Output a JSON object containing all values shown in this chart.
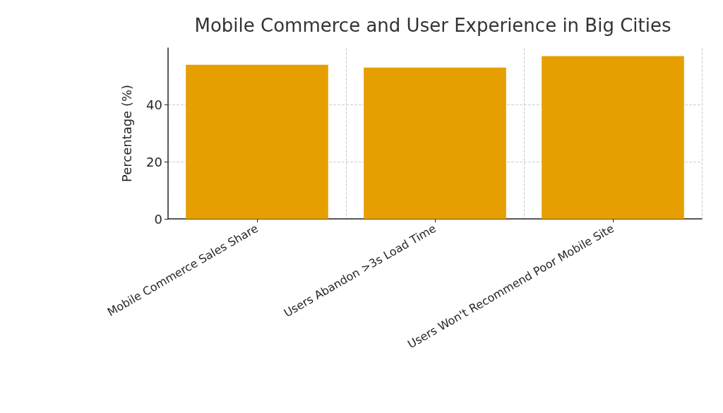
{
  "chart_data": {
    "type": "bar",
    "title": "Mobile Commerce and User Experience in Big Cities",
    "ylabel": "Percentage (%)",
    "categories": [
      "Mobile Commerce Sales Share",
      "Users Abandon >3s Load Time",
      "Users Won't Recommend Poor Mobile Site"
    ],
    "values": [
      54,
      53,
      57
    ],
    "color": "#e69f00",
    "ylim": [
      0,
      59.85
    ],
    "yticks": [
      0,
      20,
      40
    ],
    "grid": true
  }
}
